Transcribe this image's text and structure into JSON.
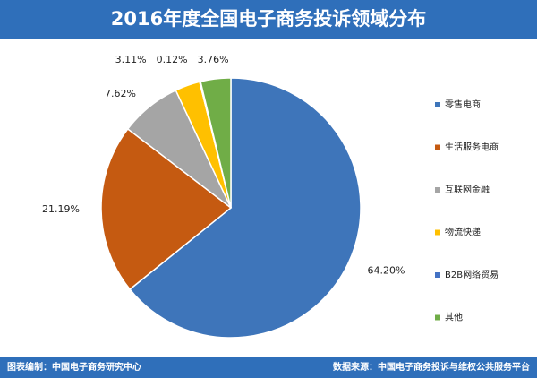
{
  "chart_data": {
    "type": "pie",
    "title": "2016年度全国电子商务投诉领域分布",
    "categories": [
      "零售电商",
      "生活服务电商",
      "互联网金融",
      "物流快递",
      "B2B网络贸易",
      "其他"
    ],
    "values": [
      64.2,
      21.19,
      7.62,
      3.11,
      0.12,
      3.76
    ],
    "value_labels": [
      "64.20%",
      "21.19%",
      "7.62%",
      "3.11%",
      "0.12%",
      "3.76%"
    ],
    "colors": [
      "#3e75ba",
      "#c55a11",
      "#a5a5a5",
      "#ffc000",
      "#4472c4",
      "#70ad47"
    ],
    "legend": "right"
  },
  "footer": {
    "left": "图表编制：中国电子商务研究中心",
    "right": "数据来源：中国电子商务投诉与维权公共服务平台"
  }
}
